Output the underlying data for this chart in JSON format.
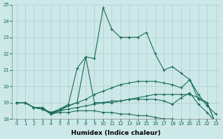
{
  "xlabel": "Humidex (Indice chaleur)",
  "xlim": [
    -0.5,
    23.5
  ],
  "ylim": [
    18,
    25
  ],
  "yticks": [
    18,
    19,
    20,
    21,
    22,
    23,
    24,
    25
  ],
  "xticks": [
    0,
    1,
    2,
    3,
    4,
    5,
    6,
    7,
    8,
    9,
    10,
    11,
    12,
    13,
    14,
    15,
    16,
    17,
    18,
    19,
    20,
    21,
    22,
    23
  ],
  "bg_color": "#cce8e8",
  "grid_color": "#b0cccc",
  "line_color": "#1a6b5a",
  "lines": [
    {
      "x": [
        0,
        1,
        2,
        3,
        4,
        5,
        6,
        7,
        8,
        9,
        10,
        11,
        12,
        13,
        14,
        15,
        16,
        17,
        18,
        19,
        20,
        21,
        22,
        23
      ],
      "y": [
        19.0,
        19.0,
        18.7,
        18.7,
        18.3,
        18.5,
        18.8,
        19.0,
        21.8,
        21.7,
        24.8,
        23.5,
        23.0,
        23.0,
        23.0,
        23.3,
        22.0,
        21.0,
        21.2,
        20.8,
        20.4,
        19.2,
        19.0,
        17.7
      ]
    },
    {
      "x": [
        0,
        1,
        2,
        3,
        4,
        5,
        6,
        7,
        8,
        9,
        10,
        11,
        12,
        13,
        14,
        15,
        16,
        17,
        18,
        19,
        20,
        21,
        22,
        23
      ],
      "y": [
        19.0,
        19.0,
        18.7,
        18.7,
        18.3,
        18.6,
        18.9,
        21.1,
        21.8,
        19.0,
        19.0,
        19.0,
        19.1,
        19.2,
        19.3,
        19.4,
        19.5,
        19.5,
        19.5,
        19.5,
        19.5,
        19.3,
        19.0,
        17.7
      ]
    },
    {
      "x": [
        0,
        1,
        2,
        3,
        4,
        5,
        6,
        7,
        8,
        9,
        10,
        11,
        12,
        13,
        14,
        15,
        16,
        17,
        18,
        19,
        20,
        21,
        22,
        23
      ],
      "y": [
        19.0,
        19.0,
        18.7,
        18.6,
        18.4,
        18.6,
        18.8,
        19.0,
        19.2,
        19.5,
        19.7,
        19.9,
        20.1,
        20.2,
        20.3,
        20.3,
        20.3,
        20.2,
        20.1,
        19.9,
        20.4,
        19.5,
        18.8,
        18.3
      ]
    },
    {
      "x": [
        0,
        1,
        2,
        3,
        4,
        5,
        6,
        7,
        8,
        9,
        10,
        11,
        12,
        13,
        14,
        15,
        16,
        17,
        18,
        19,
        20,
        21,
        22,
        23
      ],
      "y": [
        19.0,
        19.0,
        18.7,
        18.6,
        18.4,
        18.5,
        18.6,
        18.7,
        18.8,
        18.9,
        19.0,
        19.1,
        19.1,
        19.2,
        19.2,
        19.2,
        19.2,
        19.1,
        18.9,
        19.3,
        19.6,
        18.9,
        18.4,
        17.8
      ]
    },
    {
      "x": [
        0,
        1,
        2,
        3,
        4,
        5,
        6,
        7,
        8,
        9,
        10,
        11,
        12,
        13,
        14,
        15,
        16,
        17,
        18,
        19,
        20,
        21,
        22,
        23
      ],
      "y": [
        19.0,
        19.0,
        18.7,
        18.6,
        18.3,
        18.4,
        18.4,
        18.5,
        18.5,
        18.5,
        18.4,
        18.4,
        18.3,
        18.3,
        18.2,
        18.2,
        18.1,
        18.0,
        18.0,
        17.9,
        17.9,
        17.8,
        17.7,
        17.65
      ]
    }
  ]
}
